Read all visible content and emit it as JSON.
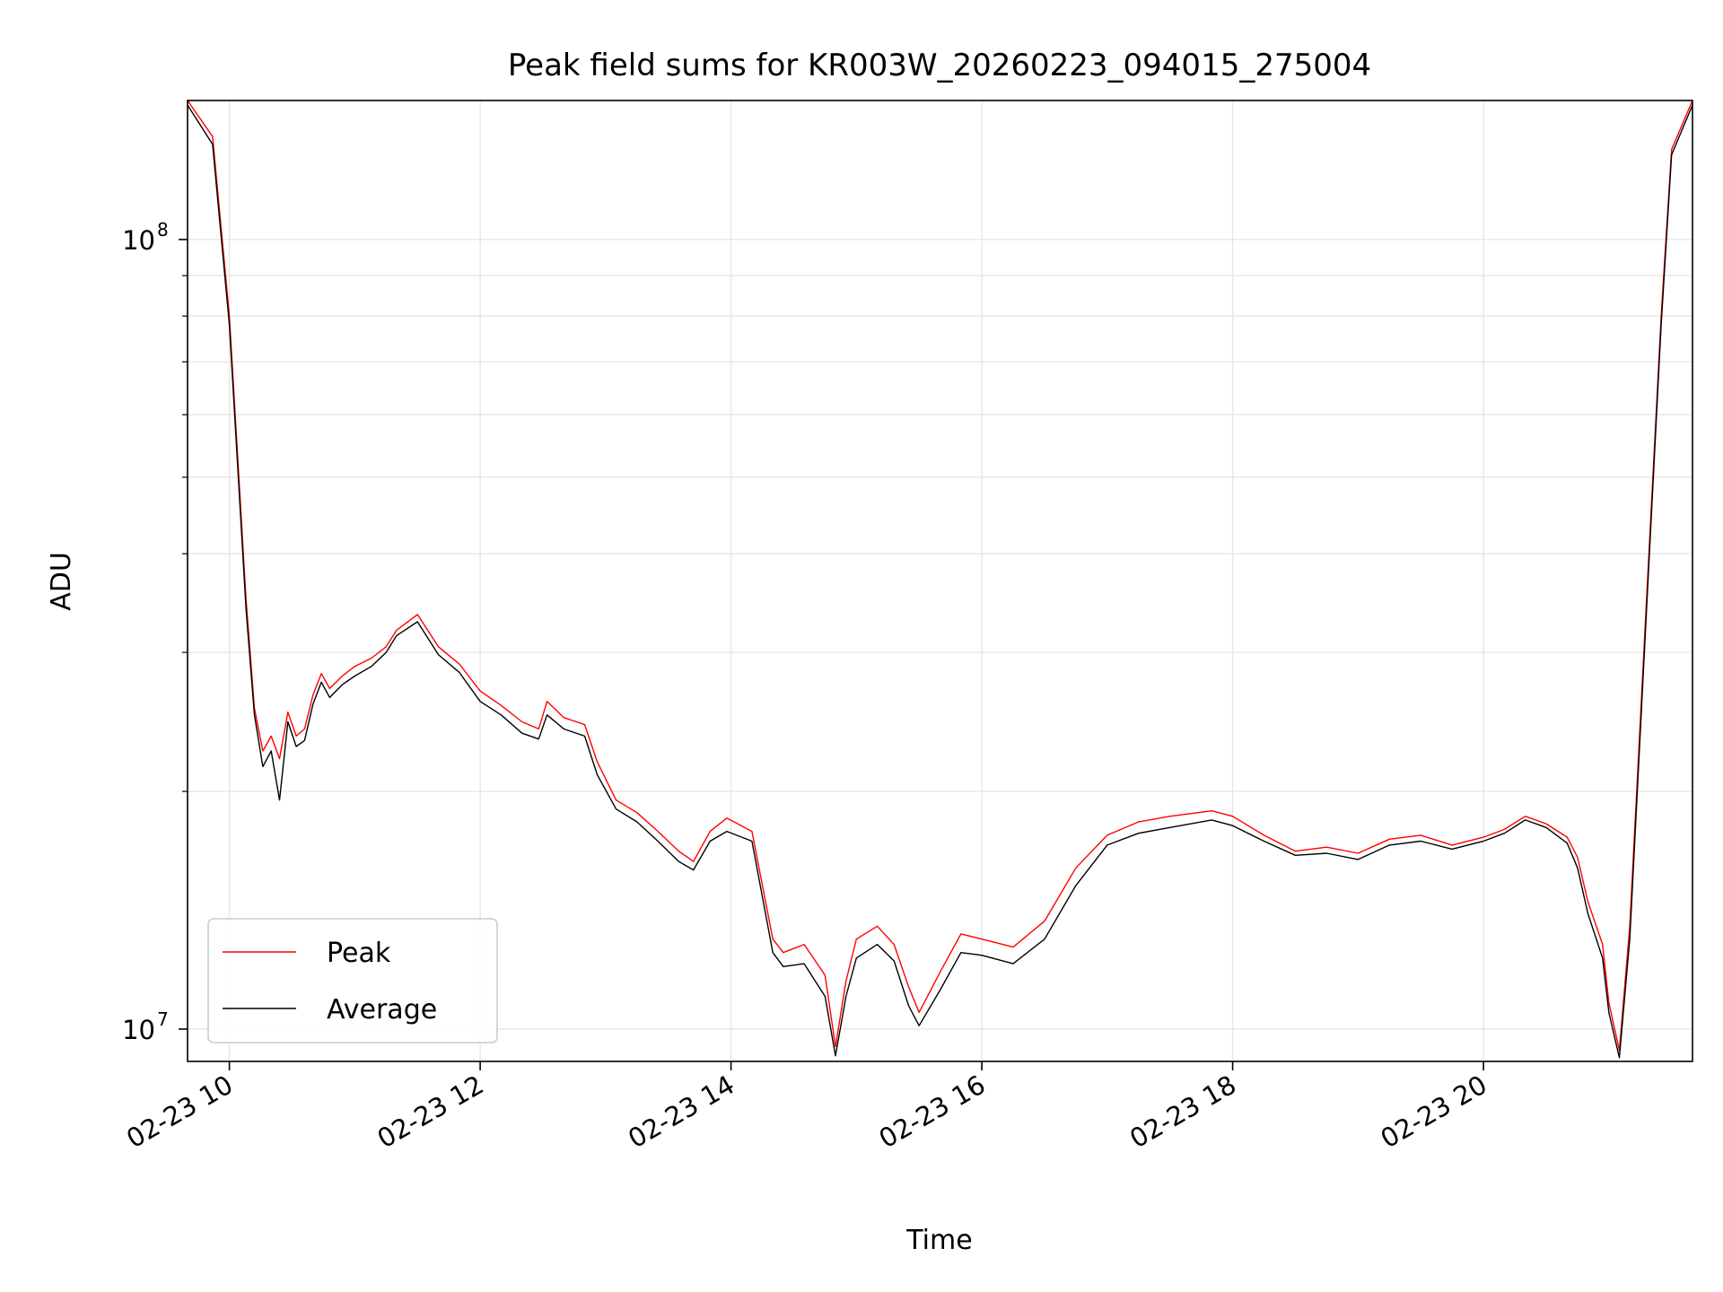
{
  "chart_data": {
    "type": "line",
    "title": "Peak field sums for KR003W_20260223_094015_275004",
    "xlabel": "Time",
    "ylabel": "ADU",
    "xscale": "time",
    "yscale": "log",
    "xlim": [
      "2026-02-23 09:40",
      "2026-02-23 21:40"
    ],
    "ylim": [
      9100000,
      150000000
    ],
    "x_ticks": [
      "02-23 10",
      "02-23 12",
      "02-23 14",
      "02-23 16",
      "02-23 18",
      "02-23 20"
    ],
    "y_ticks": [
      {
        "value": 10000000,
        "base": "10",
        "exp": "7"
      },
      {
        "value": 100000000,
        "base": "10",
        "exp": "8"
      }
    ],
    "grid": true,
    "legend_position": "lower-left",
    "colors": {
      "Peak": "#ff0000",
      "Average": "#000000"
    },
    "series": [
      {
        "name": "Peak",
        "x": [
          "2026-02-23 09:40",
          "2026-02-23 09:52",
          "2026-02-23 10:00",
          "2026-02-23 10:08",
          "2026-02-23 10:12",
          "2026-02-23 10:16",
          "2026-02-23 10:20",
          "2026-02-23 10:24",
          "2026-02-23 10:28",
          "2026-02-23 10:32",
          "2026-02-23 10:36",
          "2026-02-23 10:40",
          "2026-02-23 10:44",
          "2026-02-23 10:48",
          "2026-02-23 10:54",
          "2026-02-23 11:00",
          "2026-02-23 11:08",
          "2026-02-23 11:15",
          "2026-02-23 11:20",
          "2026-02-23 11:30",
          "2026-02-23 11:40",
          "2026-02-23 11:50",
          "2026-02-23 12:00",
          "2026-02-23 12:10",
          "2026-02-23 12:20",
          "2026-02-23 12:28",
          "2026-02-23 12:32",
          "2026-02-23 12:40",
          "2026-02-23 12:50",
          "2026-02-23 12:56",
          "2026-02-23 13:05",
          "2026-02-23 13:15",
          "2026-02-23 13:25",
          "2026-02-23 13:35",
          "2026-02-23 13:42",
          "2026-02-23 13:50",
          "2026-02-23 13:58",
          "2026-02-23 14:10",
          "2026-02-23 14:20",
          "2026-02-23 14:25",
          "2026-02-23 14:35",
          "2026-02-23 14:45",
          "2026-02-23 14:50",
          "2026-02-23 14:55",
          "2026-02-23 15:00",
          "2026-02-23 15:10",
          "2026-02-23 15:18",
          "2026-02-23 15:25",
          "2026-02-23 15:30",
          "2026-02-23 15:40",
          "2026-02-23 15:50",
          "2026-02-23 16:00",
          "2026-02-23 16:15",
          "2026-02-23 16:30",
          "2026-02-23 16:45",
          "2026-02-23 17:00",
          "2026-02-23 17:15",
          "2026-02-23 17:30",
          "2026-02-23 17:50",
          "2026-02-23 18:00",
          "2026-02-23 18:15",
          "2026-02-23 18:30",
          "2026-02-23 18:45",
          "2026-02-23 19:00",
          "2026-02-23 19:15",
          "2026-02-23 19:30",
          "2026-02-23 19:45",
          "2026-02-23 20:00",
          "2026-02-23 20:10",
          "2026-02-23 20:20",
          "2026-02-23 20:30",
          "2026-02-23 20:40",
          "2026-02-23 20:45",
          "2026-02-23 20:50",
          "2026-02-23 20:57",
          "2026-02-23 21:00",
          "2026-02-23 21:05",
          "2026-02-23 21:10",
          "2026-02-23 21:18",
          "2026-02-23 21:25",
          "2026-02-23 21:30",
          "2026-02-23 21:40"
        ],
        "values": [
          150000000,
          135000000,
          80000000,
          35000000,
          25500000,
          22500000,
          23500000,
          22000000,
          25200000,
          23500000,
          24000000,
          26500000,
          28200000,
          27000000,
          28000000,
          28800000,
          29500000,
          30500000,
          32000000,
          33500000,
          30500000,
          29000000,
          26800000,
          25700000,
          24500000,
          24000000,
          26000000,
          24800000,
          24300000,
          21800000,
          19500000,
          18800000,
          17800000,
          16800000,
          16300000,
          17800000,
          18500000,
          17800000,
          13000000,
          12500000,
          12800000,
          11700000,
          9500000,
          11500000,
          13000000,
          13500000,
          12800000,
          11300000,
          10500000,
          11800000,
          13200000,
          13000000,
          12700000,
          13700000,
          16000000,
          17600000,
          18300000,
          18600000,
          18900000,
          18600000,
          17600000,
          16800000,
          17000000,
          16700000,
          17400000,
          17600000,
          17100000,
          17500000,
          17900000,
          18600000,
          18200000,
          17500000,
          16500000,
          14500000,
          12800000,
          10800000,
          9400000,
          13500000,
          35000000,
          80000000,
          130000000,
          150000000
        ]
      },
      {
        "name": "Average",
        "x": [
          "2026-02-23 09:40",
          "2026-02-23 09:52",
          "2026-02-23 10:00",
          "2026-02-23 10:08",
          "2026-02-23 10:12",
          "2026-02-23 10:16",
          "2026-02-23 10:20",
          "2026-02-23 10:24",
          "2026-02-23 10:28",
          "2026-02-23 10:32",
          "2026-02-23 10:36",
          "2026-02-23 10:40",
          "2026-02-23 10:44",
          "2026-02-23 10:48",
          "2026-02-23 10:54",
          "2026-02-23 11:00",
          "2026-02-23 11:08",
          "2026-02-23 11:15",
          "2026-02-23 11:20",
          "2026-02-23 11:30",
          "2026-02-23 11:40",
          "2026-02-23 11:50",
          "2026-02-23 12:00",
          "2026-02-23 12:10",
          "2026-02-23 12:20",
          "2026-02-23 12:28",
          "2026-02-23 12:32",
          "2026-02-23 12:40",
          "2026-02-23 12:50",
          "2026-02-23 12:56",
          "2026-02-23 13:05",
          "2026-02-23 13:15",
          "2026-02-23 13:25",
          "2026-02-23 13:35",
          "2026-02-23 13:42",
          "2026-02-23 13:50",
          "2026-02-23 13:58",
          "2026-02-23 14:10",
          "2026-02-23 14:20",
          "2026-02-23 14:25",
          "2026-02-23 14:35",
          "2026-02-23 14:45",
          "2026-02-23 14:50",
          "2026-02-23 14:55",
          "2026-02-23 15:00",
          "2026-02-23 15:10",
          "2026-02-23 15:18",
          "2026-02-23 15:25",
          "2026-02-23 15:30",
          "2026-02-23 15:40",
          "2026-02-23 15:50",
          "2026-02-23 16:00",
          "2026-02-23 16:15",
          "2026-02-23 16:30",
          "2026-02-23 16:45",
          "2026-02-23 17:00",
          "2026-02-23 17:15",
          "2026-02-23 17:30",
          "2026-02-23 17:50",
          "2026-02-23 18:00",
          "2026-02-23 18:15",
          "2026-02-23 18:30",
          "2026-02-23 18:45",
          "2026-02-23 19:00",
          "2026-02-23 19:15",
          "2026-02-23 19:30",
          "2026-02-23 19:45",
          "2026-02-23 20:00",
          "2026-02-23 20:10",
          "2026-02-23 20:20",
          "2026-02-23 20:30",
          "2026-02-23 20:40",
          "2026-02-23 20:45",
          "2026-02-23 20:50",
          "2026-02-23 20:57",
          "2026-02-23 21:00",
          "2026-02-23 21:05",
          "2026-02-23 21:10",
          "2026-02-23 21:18",
          "2026-02-23 21:25",
          "2026-02-23 21:30",
          "2026-02-23 21:40"
        ],
        "values": [
          148000000,
          132000000,
          78000000,
          34000000,
          25000000,
          21500000,
          22500000,
          19500000,
          24500000,
          22800000,
          23200000,
          25800000,
          27500000,
          26300000,
          27300000,
          28000000,
          28800000,
          30000000,
          31500000,
          32800000,
          29800000,
          28300000,
          26000000,
          25000000,
          23700000,
          23300000,
          25000000,
          24000000,
          23500000,
          21000000,
          19000000,
          18300000,
          17300000,
          16300000,
          15900000,
          17300000,
          17800000,
          17300000,
          12500000,
          12000000,
          12100000,
          11000000,
          9250000,
          11000000,
          12300000,
          12800000,
          12200000,
          10700000,
          10100000,
          11200000,
          12500000,
          12400000,
          12100000,
          13000000,
          15200000,
          17100000,
          17700000,
          18000000,
          18400000,
          18100000,
          17300000,
          16600000,
          16700000,
          16400000,
          17100000,
          17300000,
          16900000,
          17300000,
          17700000,
          18400000,
          18000000,
          17200000,
          16000000,
          14000000,
          12300000,
          10500000,
          9200000,
          13000000,
          34000000,
          78000000,
          128000000,
          148000000
        ]
      }
    ]
  }
}
